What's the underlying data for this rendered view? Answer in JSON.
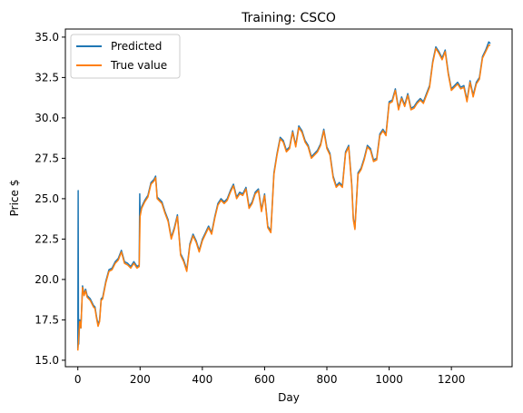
{
  "chart_data": {
    "type": "line",
    "title": "Training: CSCO",
    "xlabel": "Day",
    "ylabel": "Price $",
    "xlim": [
      -40,
      1395
    ],
    "ylim": [
      14.6,
      35.5
    ],
    "xticks": [
      0,
      200,
      400,
      600,
      800,
      1000,
      1200
    ],
    "xtick_labels": [
      "0",
      "200",
      "400",
      "600",
      "800",
      "1000",
      "1200"
    ],
    "yticks": [
      15.0,
      17.5,
      20.0,
      22.5,
      25.0,
      27.5,
      30.0,
      32.5,
      35.0
    ],
    "ytick_labels": [
      "15.0",
      "17.5",
      "20.0",
      "22.5",
      "25.0",
      "27.5",
      "30.0",
      "32.5",
      "35.0"
    ],
    "grid": false,
    "legend_position": "top-left",
    "series": [
      {
        "name": "Predicted",
        "color": "#1f77b4",
        "x": [
          0,
          1,
          2,
          3,
          6,
          10,
          15,
          20,
          25,
          30,
          40,
          50,
          55,
          60,
          65,
          70,
          75,
          80,
          90,
          100,
          110,
          120,
          130,
          140,
          150,
          160,
          170,
          180,
          190,
          197,
          199,
          200,
          205,
          215,
          225,
          235,
          245,
          250,
          255,
          260,
          270,
          280,
          290,
          300,
          310,
          320,
          330,
          340,
          350,
          360,
          370,
          380,
          390,
          400,
          410,
          420,
          430,
          440,
          450,
          460,
          470,
          480,
          490,
          500,
          510,
          520,
          530,
          540,
          550,
          560,
          570,
          580,
          590,
          600,
          610,
          620,
          630,
          640,
          650,
          660,
          670,
          680,
          690,
          700,
          710,
          720,
          730,
          740,
          750,
          760,
          770,
          780,
          790,
          800,
          810,
          820,
          830,
          840,
          850,
          860,
          870,
          880,
          885,
          890,
          900,
          910,
          920,
          930,
          940,
          950,
          960,
          970,
          980,
          990,
          1000,
          1010,
          1020,
          1030,
          1040,
          1050,
          1060,
          1070,
          1080,
          1090,
          1100,
          1110,
          1120,
          1130,
          1140,
          1150,
          1160,
          1170,
          1180,
          1190,
          1200,
          1210,
          1220,
          1230,
          1240,
          1250,
          1260,
          1270,
          1280,
          1290,
          1300,
          1310,
          1320,
          1325
        ],
        "y": [
          15.7,
          25.5,
          17.2,
          16.0,
          17.5,
          17.0,
          19.6,
          19.1,
          19.4,
          19.0,
          18.8,
          18.4,
          18.3,
          17.7,
          17.2,
          17.5,
          18.8,
          18.9,
          19.9,
          20.6,
          20.7,
          21.1,
          21.3,
          21.8,
          21.1,
          21.0,
          20.8,
          21.1,
          20.8,
          20.9,
          25.3,
          24.0,
          24.5,
          24.9,
          25.2,
          26.0,
          26.2,
          26.4,
          25.1,
          25.0,
          24.8,
          24.2,
          23.7,
          22.6,
          23.2,
          24.0,
          21.6,
          21.2,
          20.6,
          22.2,
          22.8,
          22.4,
          21.8,
          22.5,
          22.9,
          23.3,
          22.9,
          23.9,
          24.7,
          25.0,
          24.8,
          25.0,
          25.5,
          25.9,
          25.1,
          25.4,
          25.3,
          25.7,
          24.5,
          24.8,
          25.4,
          25.6,
          24.3,
          25.3,
          23.3,
          23.0,
          26.6,
          27.8,
          28.8,
          28.6,
          28.0,
          28.2,
          29.2,
          28.3,
          29.5,
          29.2,
          28.6,
          28.3,
          27.6,
          27.8,
          28.0,
          28.4,
          29.3,
          28.2,
          27.8,
          26.4,
          25.8,
          26.0,
          25.8,
          27.9,
          28.3,
          25.9,
          23.8,
          23.2,
          26.6,
          26.9,
          27.5,
          28.3,
          28.1,
          27.4,
          27.5,
          29.0,
          29.3,
          29.0,
          31.0,
          31.1,
          31.8,
          30.6,
          31.3,
          30.8,
          31.5,
          30.6,
          30.7,
          31.0,
          31.2,
          31.0,
          31.5,
          32.0,
          33.5,
          34.4,
          34.1,
          33.7,
          34.2,
          32.8,
          31.8,
          32.0,
          32.2,
          31.9,
          32.0,
          31.1,
          32.3,
          31.4,
          32.2,
          32.5,
          33.8,
          34.2,
          34.7,
          34.6
        ]
      },
      {
        "name": "True value",
        "color": "#ff7f0e",
        "x": [
          0,
          2,
          6,
          10,
          15,
          20,
          25,
          30,
          40,
          50,
          55,
          60,
          65,
          70,
          75,
          80,
          90,
          100,
          110,
          120,
          130,
          140,
          150,
          160,
          170,
          180,
          190,
          197,
          200,
          205,
          215,
          225,
          235,
          245,
          250,
          255,
          260,
          270,
          280,
          290,
          300,
          310,
          320,
          330,
          340,
          350,
          360,
          370,
          380,
          390,
          400,
          410,
          420,
          430,
          440,
          450,
          460,
          470,
          480,
          490,
          500,
          510,
          520,
          530,
          540,
          550,
          560,
          570,
          580,
          590,
          600,
          610,
          620,
          630,
          640,
          650,
          660,
          670,
          680,
          690,
          700,
          710,
          720,
          730,
          740,
          750,
          760,
          770,
          780,
          790,
          800,
          810,
          820,
          830,
          840,
          850,
          860,
          870,
          880,
          885,
          890,
          900,
          910,
          920,
          930,
          940,
          950,
          960,
          970,
          980,
          990,
          1000,
          1010,
          1020,
          1030,
          1040,
          1050,
          1060,
          1070,
          1080,
          1090,
          1100,
          1110,
          1120,
          1130,
          1140,
          1150,
          1160,
          1170,
          1180,
          1190,
          1200,
          1210,
          1220,
          1230,
          1240,
          1250,
          1260,
          1270,
          1280,
          1290,
          1300,
          1310,
          1320,
          1325
        ],
        "y": [
          15.6,
          16.1,
          17.4,
          17.0,
          19.5,
          19.0,
          19.3,
          18.9,
          18.7,
          18.3,
          18.2,
          17.6,
          17.1,
          17.4,
          18.7,
          18.8,
          19.8,
          20.5,
          20.6,
          21.0,
          21.2,
          21.7,
          21.0,
          20.9,
          20.7,
          21.0,
          20.7,
          20.8,
          23.9,
          24.4,
          24.8,
          25.1,
          25.9,
          26.1,
          26.3,
          25.0,
          24.9,
          24.7,
          24.1,
          23.6,
          22.5,
          23.1,
          23.9,
          21.5,
          21.1,
          20.5,
          22.1,
          22.7,
          22.3,
          21.7,
          22.4,
          22.8,
          23.2,
          22.8,
          23.8,
          24.6,
          24.9,
          24.7,
          24.9,
          25.4,
          25.8,
          25.0,
          25.3,
          25.2,
          25.6,
          24.4,
          24.7,
          25.3,
          25.5,
          24.2,
          25.2,
          23.2,
          22.9,
          26.5,
          27.7,
          28.7,
          28.5,
          27.9,
          28.1,
          29.1,
          28.2,
          29.4,
          29.1,
          28.5,
          28.2,
          27.5,
          27.7,
          27.9,
          28.3,
          29.2,
          28.1,
          27.7,
          26.3,
          25.7,
          25.9,
          25.7,
          27.8,
          28.2,
          25.8,
          23.7,
          23.1,
          26.5,
          26.8,
          27.4,
          28.2,
          28.0,
          27.3,
          27.4,
          28.9,
          29.2,
          28.9,
          30.9,
          31.0,
          31.7,
          30.5,
          31.2,
          30.7,
          31.4,
          30.5,
          30.6,
          30.9,
          31.1,
          30.9,
          31.4,
          31.9,
          33.4,
          34.3,
          34.0,
          33.6,
          34.1,
          32.7,
          31.7,
          31.9,
          32.1,
          31.8,
          31.9,
          31.0,
          32.2,
          31.3,
          32.1,
          32.4,
          33.7,
          34.1,
          34.5,
          34.5
        ]
      }
    ]
  }
}
